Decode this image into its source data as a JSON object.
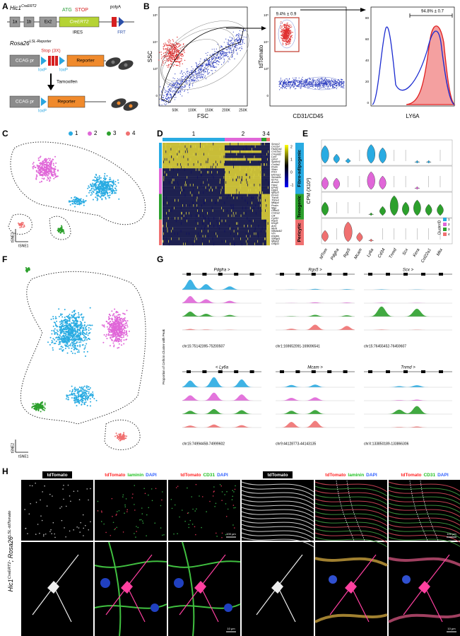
{
  "panel_labels": [
    "A",
    "B",
    "C",
    "D",
    "E",
    "F",
    "G",
    "H"
  ],
  "a": {
    "hic1": "Hic1",
    "hic1_sup": "CreERT2",
    "atg": "ATG",
    "stop": "STOP",
    "polya": "polyA",
    "exons": [
      "1a",
      "1b",
      "Ex2"
    ],
    "cre": "CreERT2",
    "ires": "IRES",
    "frt": "FRT",
    "rosa": "Rosa26",
    "rosa_sup": "LSL-Reporter",
    "ccag": "CCAG pr",
    "stop3x": "Stop (3X)",
    "loxp": "loxP",
    "reporter": "Reporter",
    "tamoxifen": "Tamoxifen"
  },
  "b": {
    "ssc": "SSC",
    "fsc": "FSC",
    "tdtomato": "tdTomato",
    "cd31": "CD31/CD45",
    "ly6a": "LY6A",
    "gate1": "9.4% ± 0.9",
    "gate2": "94.8% ± 0.7",
    "fsc_ticks": [
      "50K",
      "100K",
      "150K",
      "200K",
      "250K"
    ],
    "log_ticks": [
      "10⁵",
      "10⁴",
      "10³",
      "0"
    ],
    "hist_ticks": [
      "0",
      "20",
      "40",
      "60",
      "80"
    ]
  },
  "c": {
    "legend": [
      "1",
      "2",
      "3",
      "4"
    ],
    "tsne1": "tSNE1",
    "tsne2": "tSNE2"
  },
  "d": {
    "clusters": [
      "1",
      "2",
      "3",
      "4"
    ],
    "genes": [
      "Smoc2",
      "Cxcl14",
      "Hsd11b1",
      "Col15a1",
      "Crispld2",
      "Lum",
      "G0s2",
      "Sparcl1",
      "Col4a1",
      "Podn",
      "Sbsn",
      "Pi16",
      "Efemp1",
      "Sema3c",
      "Il27ra",
      "Anxa3",
      "Has1",
      "Efhd1",
      "Dpp4",
      "Igfbp5",
      "Fmod",
      "Tnmd",
      "Thbs4",
      "Mfap4",
      "Postn",
      "Mgp",
      "Olfml3",
      "Col1a1",
      "Clk",
      "Cyr61",
      "Rgs5",
      "Kcnj8",
      "Art3",
      "Myl9",
      "Ndufa4l2",
      "Vtn",
      "Pdgfrb",
      "Steap4",
      "Mfge8",
      "Gng11"
    ],
    "groups": [
      "Fibro-adipogenic",
      "Tenogenic",
      "Pericytic"
    ],
    "scale": [
      "2",
      "1",
      "0",
      "-1"
    ]
  },
  "e": {
    "genes": [
      "tdTom",
      "Pdgfra",
      "Rgs5",
      "Mcam",
      "Ly6a",
      "Cd34",
      "Tnmd",
      "Scx",
      "Kera",
      "Col22a1",
      "Mkx"
    ],
    "ylabel": "CPM (X10³)",
    "legend_title": "ClusterID",
    "legend": [
      "1",
      "2",
      "3",
      "4"
    ]
  },
  "g": {
    "ylabel": "Proportion of Cells in Cluster with Peak",
    "tracks": [
      {
        "gene": "Pdgfra >",
        "region": "chr15:75142395-75200507"
      },
      {
        "gene": "Rgs5 >",
        "region": "chr1:169652091-169696541"
      },
      {
        "gene": "Scx >",
        "region": "chr15:76455452-76459607"
      },
      {
        "gene": "< Ly6a",
        "region": "chr15:74994458-74999602"
      },
      {
        "gene": "Mcam >",
        "region": "chr9:44128773-44143135"
      },
      {
        "gene": "Tnmd >",
        "region": "chrX:133850189-133866306"
      }
    ]
  },
  "h": {
    "side1": "Hic1",
    "side1_sup": "CreERT2",
    "side2": "; Rosa26",
    "side2_sup": "LSL-tdTomato",
    "headers": [
      [
        "tdTomato"
      ],
      [
        "tdTomato",
        "laminin",
        "DAPI"
      ],
      [
        "tdTomato",
        "CD31",
        "DAPI"
      ],
      [
        "tdTomato"
      ],
      [
        "tdTomato",
        "laminin",
        "DAPI"
      ],
      [
        "tdTomato",
        "CD31",
        "DAPI"
      ]
    ],
    "scale_bars": [
      "100 μm",
      "10 μm"
    ]
  }
}
